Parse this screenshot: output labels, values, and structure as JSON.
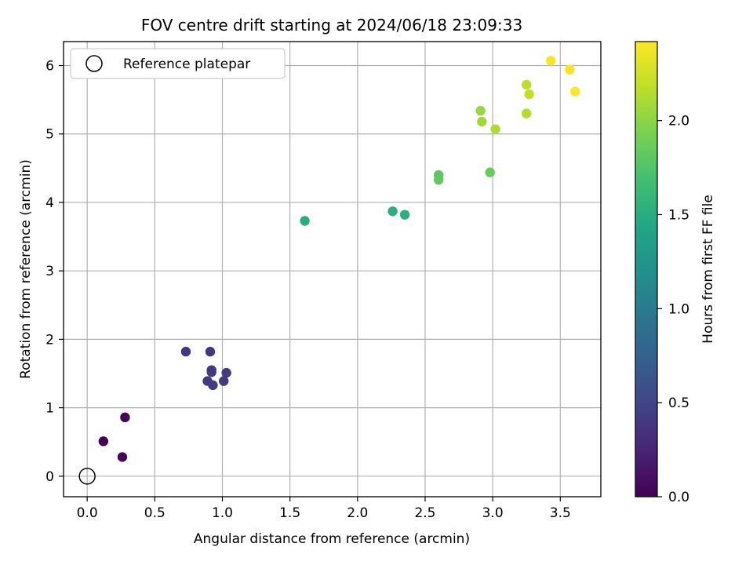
{
  "chart_data": {
    "type": "scatter",
    "title": "FOV centre drift starting at 2024/06/18 23:09:33",
    "xlabel": "Angular distance from reference (arcmin)",
    "ylabel": "Rotation from reference (arcmin)",
    "xlim": [
      -0.175,
      3.8
    ],
    "ylim": [
      -0.3,
      6.35
    ],
    "xticks": [
      "0.0",
      "0.5",
      "1.0",
      "1.5",
      "2.0",
      "2.5",
      "3.0",
      "3.5"
    ],
    "xtick_values": [
      0.0,
      0.5,
      1.0,
      1.5,
      2.0,
      2.5,
      3.0,
      3.5
    ],
    "yticks": [
      "0",
      "1",
      "2",
      "3",
      "4",
      "5",
      "6"
    ],
    "ytick_values": [
      0,
      1,
      2,
      3,
      4,
      5,
      6
    ],
    "grid": true,
    "legend": {
      "placement": "top-left",
      "entries": [
        "Reference platepar"
      ]
    },
    "reference_point": {
      "x": 0.0,
      "y": 0.0
    },
    "colorbar": {
      "label": "Hours from first FF file",
      "range": [
        0.0,
        2.42
      ],
      "ticks": [
        "0.0",
        "0.5",
        "1.0",
        "1.5",
        "2.0"
      ],
      "tick_values": [
        0.0,
        0.5,
        1.0,
        1.5,
        2.0
      ],
      "colormap": "viridis"
    },
    "points": [
      {
        "x": 0.12,
        "y": 0.51,
        "t": 0.0
      },
      {
        "x": 0.28,
        "y": 0.86,
        "t": 0.02
      },
      {
        "x": 0.26,
        "y": 0.28,
        "t": 0.05
      },
      {
        "x": 0.73,
        "y": 1.82,
        "t": 0.38
      },
      {
        "x": 0.91,
        "y": 1.82,
        "t": 0.38
      },
      {
        "x": 0.92,
        "y": 1.55,
        "t": 0.4
      },
      {
        "x": 0.92,
        "y": 1.52,
        "t": 0.4
      },
      {
        "x": 0.89,
        "y": 1.39,
        "t": 0.4
      },
      {
        "x": 0.93,
        "y": 1.33,
        "t": 0.41
      },
      {
        "x": 1.01,
        "y": 1.39,
        "t": 0.41
      },
      {
        "x": 1.03,
        "y": 1.51,
        "t": 0.41
      },
      {
        "x": 1.61,
        "y": 3.73,
        "t": 1.5
      },
      {
        "x": 2.26,
        "y": 3.87,
        "t": 1.52
      },
      {
        "x": 2.35,
        "y": 3.82,
        "t": 1.53
      },
      {
        "x": 2.6,
        "y": 4.4,
        "t": 1.8
      },
      {
        "x": 2.6,
        "y": 4.33,
        "t": 1.82
      },
      {
        "x": 2.98,
        "y": 4.44,
        "t": 1.85
      },
      {
        "x": 2.91,
        "y": 5.34,
        "t": 2.05
      },
      {
        "x": 2.92,
        "y": 5.18,
        "t": 2.07
      },
      {
        "x": 3.02,
        "y": 5.07,
        "t": 2.12
      },
      {
        "x": 3.25,
        "y": 5.3,
        "t": 2.14
      },
      {
        "x": 3.25,
        "y": 5.72,
        "t": 2.17
      },
      {
        "x": 3.27,
        "y": 5.58,
        "t": 2.19
      },
      {
        "x": 3.43,
        "y": 6.07,
        "t": 2.39
      },
      {
        "x": 3.57,
        "y": 5.94,
        "t": 2.4
      },
      {
        "x": 3.61,
        "y": 5.62,
        "t": 2.42
      }
    ]
  }
}
